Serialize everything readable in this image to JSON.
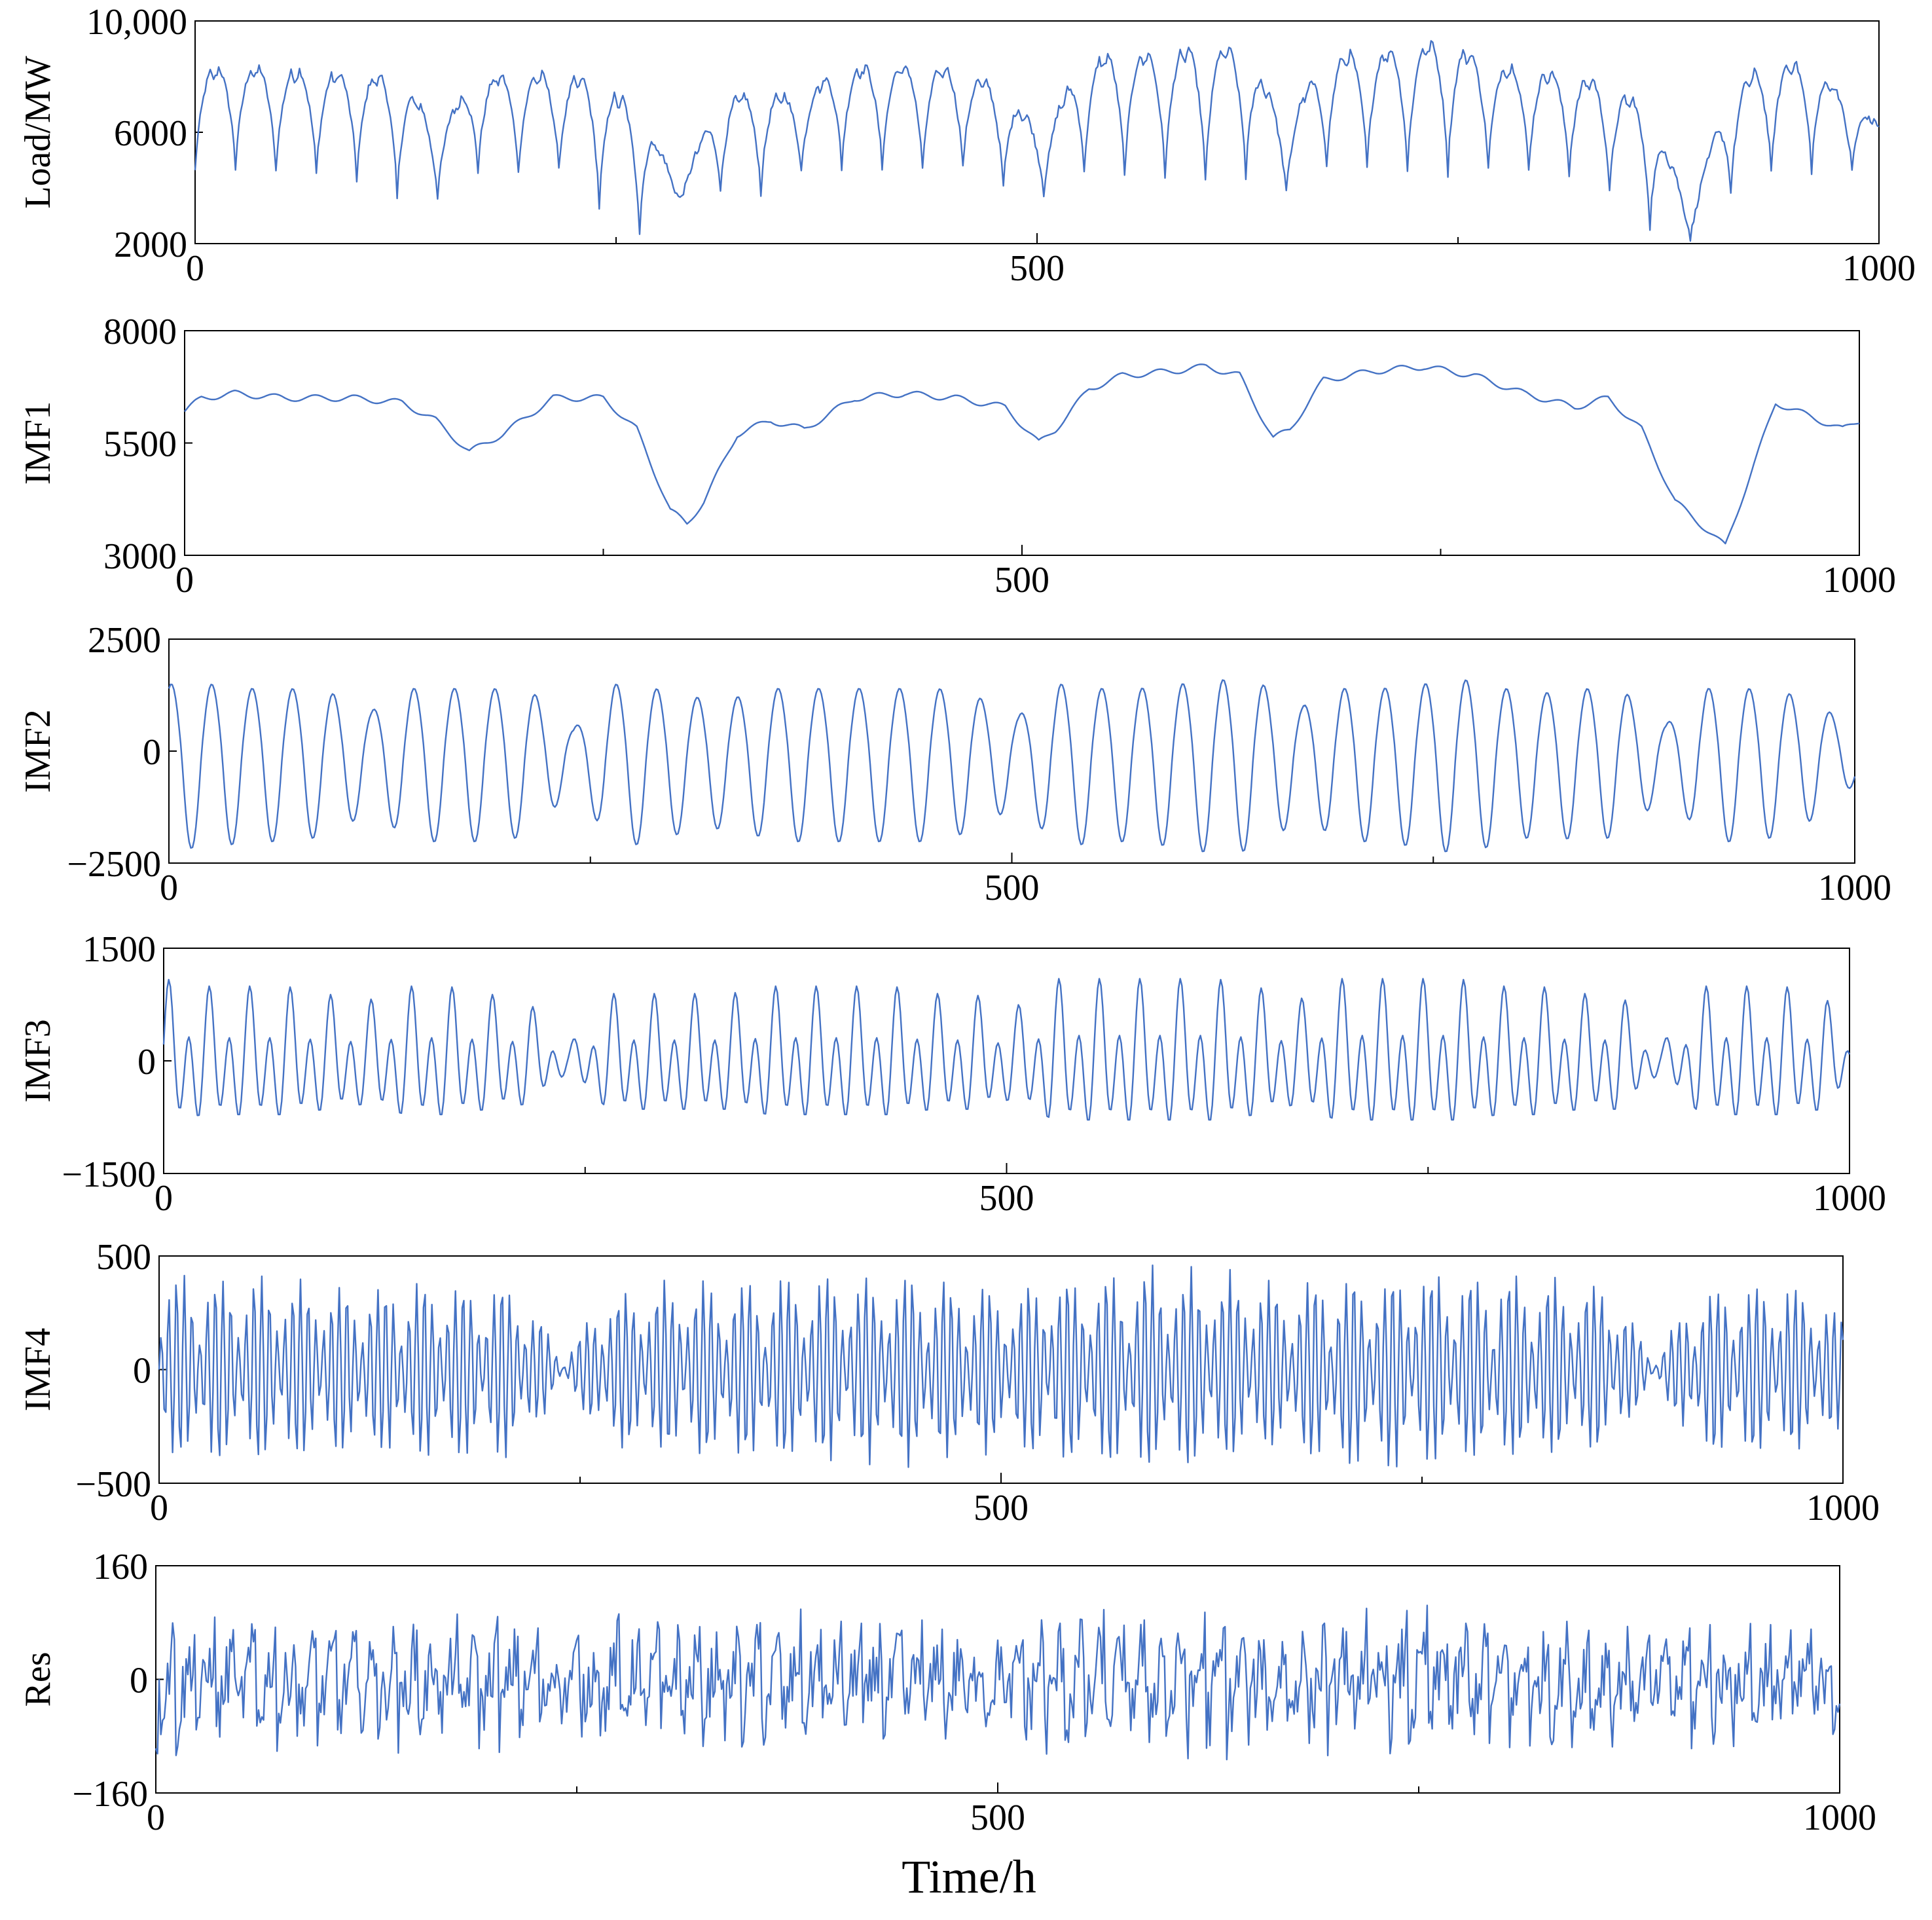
{
  "figure": {
    "xlabel": "Time/h",
    "line_color": "#4472C4"
  },
  "chart_data": [
    {
      "type": "line",
      "ylabel": "Load/MW",
      "xlim": [
        0,
        1000
      ],
      "ylim": [
        2000,
        10000
      ],
      "xticks": [
        0,
        500,
        1000
      ],
      "xtick_labels": [
        "0",
        "500",
        "1000"
      ],
      "yticks": [
        2000,
        6000,
        10000
      ],
      "ytick_labels": [
        "2000",
        "6000",
        "10,000"
      ],
      "series": [
        {
          "x": [
            0,
            24,
            48,
            72,
            96,
            120,
            144,
            168,
            192,
            216,
            240,
            264,
            288,
            312,
            336,
            360,
            384,
            408,
            432,
            456,
            480,
            504,
            528,
            552,
            576,
            600,
            624,
            648,
            672,
            696,
            720,
            744,
            768,
            792,
            816,
            840,
            864,
            888,
            912,
            936,
            960,
            984,
            1000
          ],
          "y": [
            8300,
            8500,
            8400,
            8300,
            8200,
            8200,
            6300,
            8100,
            8200,
            8200,
            8000,
            6900,
            4000,
            7400,
            7500,
            7400,
            8500,
            8500,
            8500,
            8400,
            7600,
            6000,
            8800,
            9000,
            9000,
            9300,
            9100,
            6400,
            8900,
            9000,
            9200,
            9500,
            8600,
            8400,
            8200,
            7900,
            6900,
            3300,
            7700,
            8700,
            8600,
            7100,
            6300
          ],
          "min_y": [
            4600,
            4700,
            4600,
            4500,
            4300,
            3600,
            3700,
            4600,
            4500,
            4600,
            3300,
            2400,
            3600,
            3800,
            3800,
            4600,
            4700,
            4700,
            4600,
            4700,
            4000,
            3800,
            4500,
            4400,
            4400,
            4200,
            4400,
            3800,
            4700,
            4700,
            4600,
            4500,
            4700,
            4600,
            4500,
            3800,
            2600,
            2200,
            3800,
            4500,
            4600,
            4600,
            5600
          ]
        }
      ]
    },
    {
      "type": "line",
      "ylabel": "IMF1",
      "xlim": [
        0,
        1000
      ],
      "ylim": [
        3000,
        8000
      ],
      "xticks": [
        0,
        500,
        1000
      ],
      "xtick_labels": [
        "0",
        "500",
        "1000"
      ],
      "yticks": [
        3000,
        5500,
        8000
      ],
      "ytick_labels": [
        "3000",
        "5500",
        "8000"
      ],
      "series": [
        {
          "x": [
            0,
            10,
            30,
            60,
            100,
            130,
            150,
            170,
            190,
            220,
            250,
            270,
            290,
            300,
            310,
            330,
            350,
            370,
            400,
            430,
            460,
            490,
            510,
            520,
            540,
            560,
            590,
            610,
            630,
            650,
            660,
            680,
            710,
            740,
            770,
            800,
            830,
            850,
            870,
            890,
            920,
            950,
            990,
            1000
          ],
          "y": [
            6200,
            6500,
            6600,
            6500,
            6500,
            6400,
            6000,
            5300,
            5700,
            6500,
            6500,
            5800,
            4000,
            3700,
            4200,
            5700,
            6000,
            5800,
            6500,
            6600,
            6500,
            6300,
            5500,
            5800,
            6700,
            7000,
            7100,
            7200,
            7000,
            5600,
            5800,
            6900,
            7100,
            7200,
            7000,
            6600,
            6300,
            6500,
            5800,
            4200,
            3200,
            6400,
            5800,
            6000
          ]
        }
      ]
    },
    {
      "type": "line",
      "ylabel": "IMF2",
      "xlim": [
        0,
        1000
      ],
      "ylim": [
        -2500,
        2500
      ],
      "xticks": [
        0,
        500,
        1000
      ],
      "xtick_labels": [
        "0",
        "500",
        "1000"
      ],
      "yticks": [
        -2500,
        0,
        2500
      ],
      "ytick_labels": [
        "−2500",
        "0",
        "2500"
      ],
      "series": [
        {
          "x": [
            0,
            24,
            48,
            72,
            96,
            120,
            144,
            168,
            192,
            216,
            240,
            264,
            288,
            312,
            336,
            360,
            384,
            408,
            432,
            456,
            480,
            504,
            528,
            552,
            576,
            600,
            624,
            648,
            672,
            696,
            720,
            744,
            768,
            792,
            816,
            840,
            864,
            888,
            912,
            936,
            960,
            984,
            1000
          ],
          "amplitude": [
            1500,
            1500,
            1400,
            1400,
            1300,
            900,
            1400,
            1400,
            1400,
            1300,
            500,
            1500,
            1400,
            1200,
            1200,
            1400,
            1400,
            1400,
            1400,
            1400,
            1200,
            800,
            1500,
            1400,
            1400,
            1500,
            1600,
            1500,
            1000,
            1400,
            1400,
            1500,
            1600,
            1400,
            1300,
            1400,
            1300,
            600,
            1400,
            1400,
            1300,
            900,
            500
          ]
        }
      ]
    },
    {
      "type": "line",
      "ylabel": "IMF3",
      "xlim": [
        0,
        1000
      ],
      "ylim": [
        -1500,
        1500
      ],
      "xticks": [
        0,
        500,
        1000
      ],
      "xtick_labels": [
        "0",
        "500",
        "1000"
      ],
      "yticks": [
        -1500,
        0,
        1500
      ],
      "ytick_labels": [
        "−1500",
        "0",
        "1500"
      ],
      "series": [
        {
          "x": [
            0,
            24,
            48,
            72,
            96,
            120,
            144,
            168,
            192,
            216,
            240,
            264,
            288,
            312,
            336,
            360,
            384,
            408,
            432,
            456,
            480,
            504,
            528,
            552,
            576,
            600,
            624,
            648,
            672,
            696,
            720,
            744,
            768,
            792,
            816,
            840,
            864,
            888,
            912,
            936,
            960,
            984,
            1000
          ],
          "amplitude": [
            1100,
            1000,
            1000,
            1000,
            900,
            800,
            1000,
            1000,
            900,
            800,
            200,
            900,
            900,
            900,
            900,
            1000,
            1000,
            1000,
            1000,
            900,
            900,
            700,
            1100,
            1100,
            1100,
            1100,
            1100,
            1000,
            800,
            1100,
            1100,
            1100,
            1100,
            1000,
            1000,
            900,
            900,
            200,
            1000,
            1000,
            1000,
            900,
            400
          ]
        }
      ]
    },
    {
      "type": "line",
      "ylabel": "IMF4",
      "xlim": [
        0,
        1000
      ],
      "ylim": [
        -500,
        500
      ],
      "xticks": [
        0,
        500,
        1000
      ],
      "xtick_labels": [
        "0",
        "500",
        "1000"
      ],
      "yticks": [
        -500,
        0,
        500
      ],
      "ytick_labels": [
        "−500",
        "0",
        "500"
      ],
      "series": [
        {
          "x": [
            0,
            24,
            48,
            72,
            96,
            120,
            144,
            168,
            192,
            216,
            240,
            264,
            288,
            312,
            336,
            360,
            384,
            408,
            432,
            456,
            480,
            504,
            528,
            552,
            576,
            600,
            624,
            648,
            672,
            696,
            720,
            744,
            768,
            792,
            816,
            840,
            864,
            888,
            912,
            936,
            960,
            984,
            1000
          ],
          "amplitude": [
            440,
            450,
            450,
            440,
            420,
            380,
            440,
            440,
            420,
            400,
            40,
            380,
            400,
            420,
            420,
            440,
            440,
            440,
            450,
            440,
            420,
            360,
            460,
            460,
            470,
            480,
            470,
            440,
            380,
            460,
            460,
            470,
            470,
            440,
            440,
            420,
            400,
            40,
            400,
            420,
            420,
            380,
            260
          ]
        }
      ]
    },
    {
      "type": "line",
      "ylabel": "Res",
      "xlim": [
        0,
        1000
      ],
      "ylim": [
        -160,
        160
      ],
      "xticks": [
        0,
        500,
        1000
      ],
      "xtick_labels": [
        "0",
        "500",
        "1000"
      ],
      "yticks": [
        -160,
        0,
        160
      ],
      "ytick_labels": [
        "−160",
        "0",
        "160"
      ],
      "series": [
        {
          "x": [
            0,
            24,
            48,
            72,
            96,
            120,
            144,
            168,
            192,
            216,
            240,
            264,
            288,
            312,
            336,
            360,
            384,
            408,
            432,
            456,
            480,
            504,
            528,
            552,
            576,
            600,
            624,
            648,
            672,
            696,
            720,
            744,
            768,
            792,
            816,
            840,
            864,
            888,
            912,
            936,
            960,
            984,
            1000
          ],
          "amplitude": [
            150,
            130,
            130,
            125,
            120,
            115,
            130,
            125,
            125,
            120,
            90,
            125,
            125,
            120,
            125,
            130,
            130,
            125,
            130,
            125,
            120,
            110,
            150,
            140,
            140,
            155,
            140,
            130,
            120,
            140,
            135,
            140,
            140,
            130,
            130,
            125,
            125,
            90,
            125,
            130,
            125,
            120,
            110
          ]
        }
      ]
    }
  ]
}
